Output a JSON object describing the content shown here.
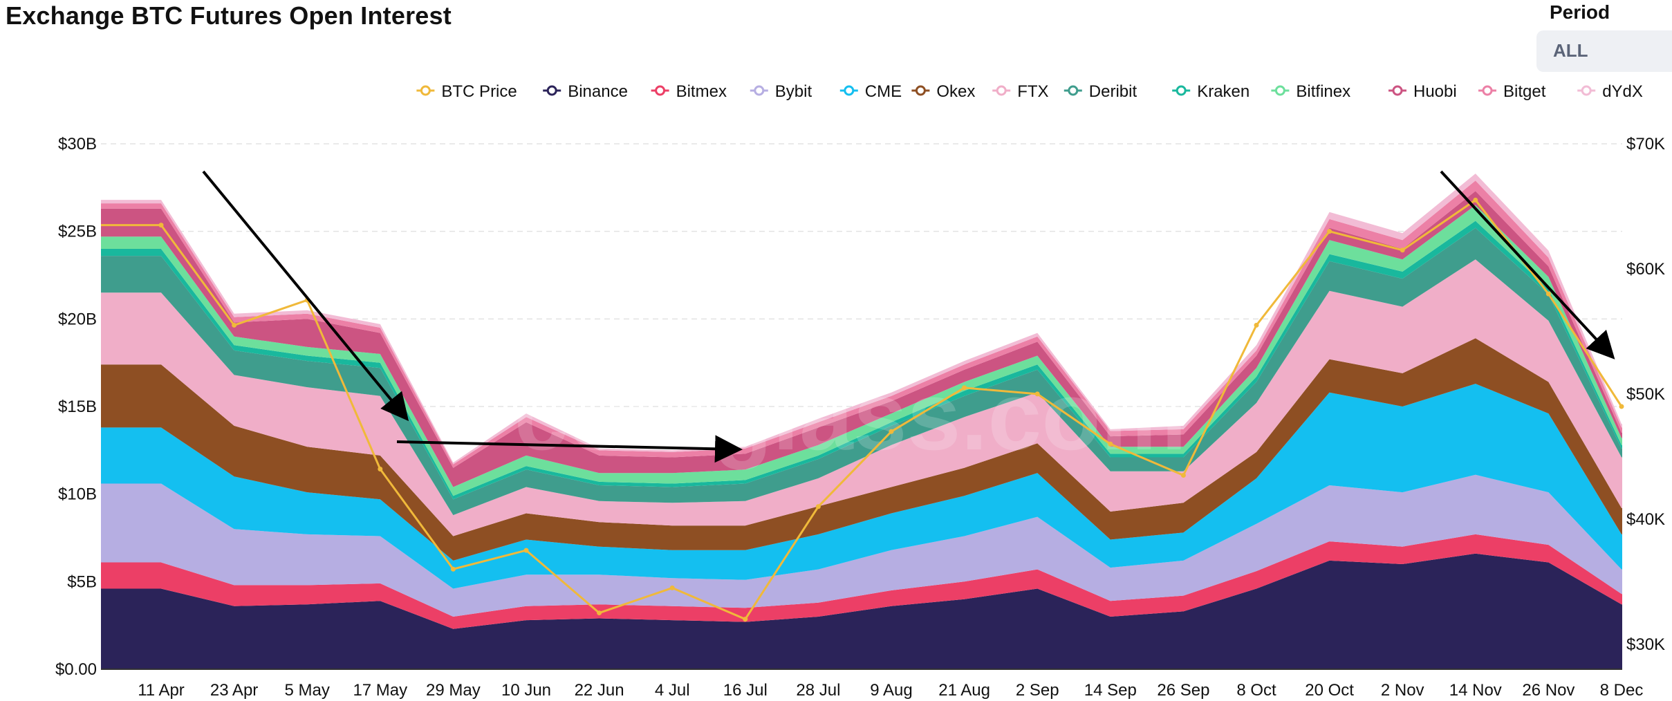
{
  "header": {
    "title": "Exchange BTC Futures Open Interest",
    "period_label": "Period",
    "period_value": "ALL"
  },
  "watermark": "coinglass.com",
  "chart_data": {
    "type": "area",
    "stacked": true,
    "title": "Exchange BTC Futures Open Interest",
    "x": [
      "11 Apr",
      "23 Apr",
      "5 May",
      "17 May",
      "29 May",
      "10 Jun",
      "22 Jun",
      "4 Jul",
      "16 Jul",
      "28 Jul",
      "9 Aug",
      "21 Aug",
      "2 Sep",
      "14 Sep",
      "26 Sep",
      "8 Oct",
      "20 Oct",
      "2 Nov",
      "14 Nov",
      "26 Nov",
      "8 Dec"
    ],
    "y_left": {
      "ticks": [
        "$0.00",
        "$5B",
        "$10B",
        "$15B",
        "$20B",
        "$25B",
        "$30B"
      ],
      "range": [
        0,
        30
      ]
    },
    "y_right": {
      "ticks": [
        "$30K",
        "$40K",
        "$50K",
        "$60K",
        "$70K"
      ],
      "range": [
        30,
        70
      ]
    },
    "grid": true,
    "legend": "top",
    "series_colors": {
      "BTC Price": "#f0b93a",
      "Binance": "#2b2359",
      "Bitmex": "#ec3f66",
      "Bybit": "#b6aee2",
      "CME": "#14bff0",
      "Okex": "#8e4f23",
      "FTX": "#f0aec8",
      "Deribit": "#3f9d8d",
      "Kraken": "#19b89d",
      "Bitfinex": "#6ddf9c",
      "Huobi": "#cc5482",
      "Bitget": "#ec80a6",
      "dYdX": "#f2bcd5"
    },
    "series": [
      {
        "name": "Binance",
        "values": [
          4.6,
          3.6,
          3.7,
          3.9,
          2.3,
          2.8,
          2.9,
          2.8,
          2.7,
          3.0,
          3.6,
          4.0,
          4.6,
          3.0,
          3.3,
          4.6,
          6.2,
          6.0,
          6.6,
          6.1,
          3.7
        ]
      },
      {
        "name": "Bitmex",
        "values": [
          1.5,
          1.2,
          1.1,
          1.0,
          0.7,
          0.8,
          0.8,
          0.8,
          0.8,
          0.8,
          0.9,
          1.0,
          1.1,
          0.9,
          0.9,
          1.0,
          1.1,
          1.0,
          1.1,
          1.0,
          0.6
        ]
      },
      {
        "name": "Bybit",
        "values": [
          4.5,
          3.2,
          2.9,
          2.7,
          1.6,
          1.8,
          1.7,
          1.6,
          1.6,
          1.9,
          2.3,
          2.6,
          3.0,
          1.9,
          2.0,
          2.7,
          3.2,
          3.1,
          3.4,
          3.0,
          1.4
        ]
      },
      {
        "name": "CME",
        "values": [
          3.2,
          3.0,
          2.4,
          2.1,
          1.6,
          2.0,
          1.6,
          1.6,
          1.7,
          2.0,
          2.1,
          2.3,
          2.5,
          1.6,
          1.6,
          2.6,
          5.3,
          4.9,
          5.2,
          4.5,
          2.0
        ]
      },
      {
        "name": "Okex",
        "values": [
          3.6,
          2.9,
          2.6,
          2.5,
          1.4,
          1.5,
          1.4,
          1.4,
          1.4,
          1.6,
          1.5,
          1.6,
          1.7,
          1.6,
          1.7,
          1.5,
          1.9,
          1.9,
          2.6,
          1.8,
          1.5
        ]
      },
      {
        "name": "FTX",
        "values": [
          4.1,
          2.9,
          3.4,
          3.4,
          1.2,
          1.5,
          1.2,
          1.3,
          1.4,
          1.6,
          2.4,
          2.9,
          2.9,
          2.3,
          1.8,
          2.8,
          3.9,
          3.8,
          4.5,
          3.5,
          2.9
        ]
      },
      {
        "name": "Deribit",
        "values": [
          2.1,
          1.4,
          1.5,
          1.6,
          0.9,
          1.0,
          0.9,
          0.9,
          1.0,
          1.1,
          1.1,
          1.2,
          1.3,
          0.8,
          0.8,
          1.2,
          1.7,
          1.6,
          1.8,
          1.5,
          0.5
        ]
      },
      {
        "name": "Kraken",
        "values": [
          0.4,
          0.3,
          0.3,
          0.3,
          0.2,
          0.2,
          0.2,
          0.2,
          0.2,
          0.2,
          0.2,
          0.3,
          0.3,
          0.2,
          0.2,
          0.3,
          0.4,
          0.4,
          0.4,
          0.3,
          0.2
        ]
      },
      {
        "name": "Bitfinex",
        "values": [
          0.7,
          0.5,
          0.5,
          0.5,
          0.5,
          0.6,
          0.5,
          0.6,
          0.6,
          0.6,
          0.5,
          0.5,
          0.5,
          0.4,
          0.4,
          0.5,
          0.8,
          0.7,
          0.9,
          0.7,
          0.4
        ]
      },
      {
        "name": "Huobi",
        "values": [
          1.6,
          0.8,
          1.6,
          1.2,
          1.1,
          1.9,
          1.0,
          0.9,
          0.9,
          1.0,
          0.7,
          0.7,
          0.8,
          0.6,
          0.7,
          0.7,
          0.7,
          0.6,
          0.8,
          0.6,
          0.3
        ]
      },
      {
        "name": "Bitget",
        "values": [
          0.3,
          0.3,
          0.3,
          0.3,
          0.2,
          0.3,
          0.3,
          0.3,
          0.3,
          0.3,
          0.3,
          0.3,
          0.3,
          0.3,
          0.3,
          0.3,
          0.5,
          0.5,
          0.6,
          0.5,
          0.3
        ]
      },
      {
        "name": "dYdX",
        "values": [
          0.2,
          0.2,
          0.2,
          0.2,
          0.1,
          0.2,
          0.1,
          0.1,
          0.1,
          0.2,
          0.2,
          0.2,
          0.2,
          0.1,
          0.2,
          0.3,
          0.4,
          0.4,
          0.4,
          0.4,
          0.2
        ]
      }
    ],
    "btc_price": {
      "name": "BTC Price",
      "axis": "right",
      "values": [
        63.5,
        55.5,
        57.5,
        44.0,
        36.0,
        37.5,
        32.5,
        34.5,
        32.0,
        41.0,
        47.0,
        50.5,
        50.0,
        46.0,
        43.5,
        55.5,
        63.0,
        61.5,
        65.5,
        58.0,
        49.0
      ]
    }
  }
}
